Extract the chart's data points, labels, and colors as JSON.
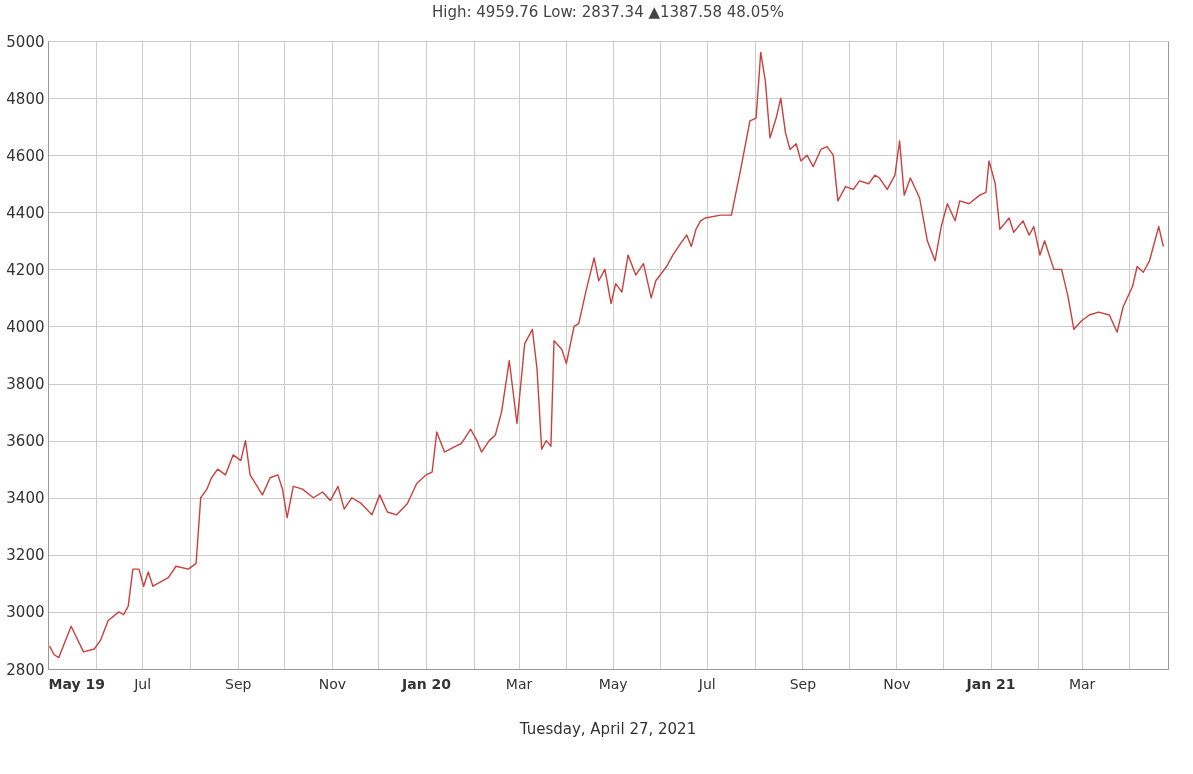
{
  "chart_data": {
    "type": "line",
    "title": "High: 4959.76 Low: 2837.34 ▲1387.58 48.05%",
    "annotations": [
      "Tuesday, April 27, 2021"
    ],
    "x": [
      "2019-05-02",
      "2019-05-05",
      "2019-05-08",
      "2019-05-16",
      "2019-05-24",
      "2019-05-31",
      "2019-06-04",
      "2019-06-09",
      "2019-06-16",
      "2019-06-19",
      "2019-06-22",
      "2019-06-25",
      "2019-06-29",
      "2019-07-02",
      "2019-07-05",
      "2019-07-08",
      "2019-07-18",
      "2019-07-23",
      "2019-07-31",
      "2019-08-05",
      "2019-08-08",
      "2019-08-12",
      "2019-08-15",
      "2019-08-19",
      "2019-08-24",
      "2019-08-29",
      "2019-09-03",
      "2019-09-06",
      "2019-09-09",
      "2019-09-17",
      "2019-09-22",
      "2019-09-27",
      "2019-09-30",
      "2019-10-03",
      "2019-10-07",
      "2019-10-13",
      "2019-10-20",
      "2019-10-26",
      "2019-10-31",
      "2019-11-05",
      "2019-11-09",
      "2019-11-14",
      "2019-11-20",
      "2019-11-27",
      "2019-12-02",
      "2019-12-07",
      "2019-12-13",
      "2019-12-20",
      "2019-12-26",
      "2020-01-01",
      "2020-01-05",
      "2020-01-08",
      "2020-01-13",
      "2020-01-20",
      "2020-01-24",
      "2020-01-30",
      "2020-02-03",
      "2020-02-06",
      "2020-02-11",
      "2020-02-15",
      "2020-02-19",
      "2020-02-24",
      "2020-02-29",
      "2020-03-05",
      "2020-03-10",
      "2020-03-13",
      "2020-03-16",
      "2020-03-19",
      "2020-03-22",
      "2020-03-24",
      "2020-03-29",
      "2020-04-01",
      "2020-04-06",
      "2020-04-09",
      "2020-04-14",
      "2020-04-19",
      "2020-04-22",
      "2020-04-26",
      "2020-04-30",
      "2020-05-03",
      "2020-05-07",
      "2020-05-11",
      "2020-05-16",
      "2020-05-21",
      "2020-05-26",
      "2020-05-29",
      "2020-06-05",
      "2020-06-09",
      "2020-06-14",
      "2020-06-18",
      "2020-06-21",
      "2020-06-24",
      "2020-06-27",
      "2020-06-30",
      "2020-07-10",
      "2020-07-17",
      "2020-07-23",
      "2020-07-29",
      "2020-08-02",
      "2020-08-05",
      "2020-08-08",
      "2020-08-11",
      "2020-08-15",
      "2020-08-18",
      "2020-08-21",
      "2020-08-24",
      "2020-08-28",
      "2020-08-31",
      "2020-09-04",
      "2020-09-08",
      "2020-09-13",
      "2020-09-17",
      "2020-09-21",
      "2020-09-24",
      "2020-09-29",
      "2020-10-04",
      "2020-10-08",
      "2020-10-14",
      "2020-10-18",
      "2020-10-21",
      "2020-10-26",
      "2020-10-31",
      "2020-11-03",
      "2020-11-06",
      "2020-11-10",
      "2020-11-16",
      "2020-11-21",
      "2020-11-26",
      "2020-11-30",
      "2020-12-04",
      "2020-12-09",
      "2020-12-12",
      "2020-12-18",
      "2020-12-25",
      "2020-12-29",
      "2020-12-31",
      "2021-01-04",
      "2021-01-07",
      "2021-01-13",
      "2021-01-16",
      "2021-01-22",
      "2021-01-26",
      "2021-01-29",
      "2021-02-02",
      "2021-02-05",
      "2021-02-11",
      "2021-02-16",
      "2021-02-20",
      "2021-02-24",
      "2021-03-01",
      "2021-03-06",
      "2021-03-12",
      "2021-03-19",
      "2021-03-24",
      "2021-03-28",
      "2021-04-03",
      "2021-04-06",
      "2021-04-10",
      "2021-04-14",
      "2021-04-20",
      "2021-04-23"
    ],
    "series": [
      {
        "color": "#c8413f",
        "values": [
          2880,
          2850,
          2840,
          2950,
          2860,
          2870,
          2900,
          2970,
          3000,
          2990,
          3020,
          3150,
          3150,
          3090,
          3140,
          3090,
          3120,
          3160,
          3150,
          3170,
          3400,
          3430,
          3470,
          3500,
          3480,
          3550,
          3530,
          3600,
          3480,
          3410,
          3470,
          3480,
          3430,
          3330,
          3440,
          3430,
          3400,
          3420,
          3390,
          3440,
          3360,
          3400,
          3380,
          3340,
          3410,
          3350,
          3340,
          3380,
          3450,
          3480,
          3490,
          3630,
          3560,
          3580,
          3590,
          3640,
          3600,
          3560,
          3600,
          3620,
          3700,
          3880,
          3660,
          3940,
          3990,
          3850,
          3570,
          3600,
          3580,
          3950,
          3920,
          3870,
          4000,
          4010,
          4130,
          4240,
          4160,
          4200,
          4080,
          4150,
          4120,
          4250,
          4180,
          4220,
          4100,
          4160,
          4210,
          4250,
          4290,
          4320,
          4280,
          4340,
          4370,
          4380,
          4390,
          4390,
          4550,
          4720,
          4730,
          4960,
          4860,
          4660,
          4730,
          4800,
          4680,
          4620,
          4640,
          4580,
          4600,
          4560,
          4620,
          4630,
          4600,
          4440,
          4490,
          4480,
          4510,
          4500,
          4530,
          4520,
          4480,
          4530,
          4650,
          4460,
          4520,
          4450,
          4300,
          4230,
          4350,
          4430,
          4370,
          4440,
          4430,
          4460,
          4470,
          4580,
          4500,
          4340,
          4380,
          4330,
          4370,
          4320,
          4350,
          4250,
          4300,
          4200,
          4200,
          4110,
          3990,
          4020,
          4040,
          4050,
          4040,
          3980,
          4070,
          4140,
          4210,
          4190,
          4230,
          4350,
          4280
        ]
      }
    ],
    "xlim": [
      "2019-05-01",
      "2021-04-26"
    ],
    "xticks": [
      {
        "value": "2019-05-01",
        "label": "May 19"
      },
      {
        "value": "2019-06-01",
        "label": null
      },
      {
        "value": "2019-07-01",
        "label": "Jul"
      },
      {
        "value": "2019-08-01",
        "label": null
      },
      {
        "value": "2019-09-01",
        "label": "Sep"
      },
      {
        "value": "2019-10-01",
        "label": null
      },
      {
        "value": "2019-11-01",
        "label": "Nov"
      },
      {
        "value": "2019-12-01",
        "label": null
      },
      {
        "value": "2020-01-01",
        "label": "Jan 20"
      },
      {
        "value": "2020-02-01",
        "label": null
      },
      {
        "value": "2020-03-01",
        "label": "Mar"
      },
      {
        "value": "2020-04-01",
        "label": null
      },
      {
        "value": "2020-05-01",
        "label": "May"
      },
      {
        "value": "2020-06-01",
        "label": null
      },
      {
        "value": "2020-07-01",
        "label": "Jul"
      },
      {
        "value": "2020-08-01",
        "label": null
      },
      {
        "value": "2020-09-01",
        "label": "Sep"
      },
      {
        "value": "2020-10-01",
        "label": null
      },
      {
        "value": "2020-11-01",
        "label": "Nov"
      },
      {
        "value": "2020-12-01",
        "label": null
      },
      {
        "value": "2021-01-01",
        "label": "Jan 21"
      },
      {
        "value": "2021-02-01",
        "label": null
      },
      {
        "value": "2021-03-01",
        "label": "Mar"
      },
      {
        "value": "2021-04-01",
        "label": null
      }
    ],
    "ylim": [
      2800,
      5000
    ],
    "yticks": [
      2800,
      3000,
      3200,
      3400,
      3600,
      3800,
      4000,
      4200,
      4400,
      4600,
      4800,
      5000
    ],
    "grid": true,
    "legend": false,
    "marker": "none",
    "line_style": "solid"
  }
}
